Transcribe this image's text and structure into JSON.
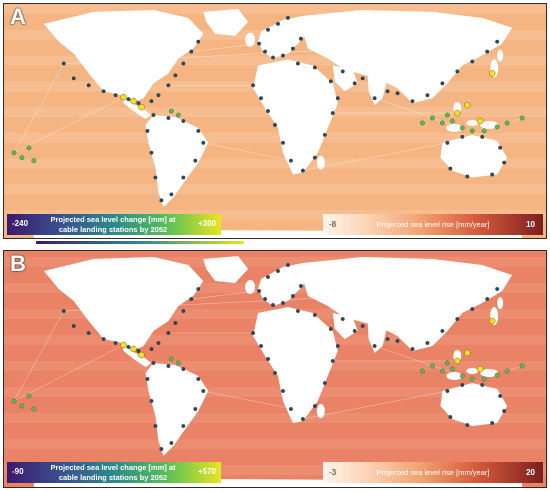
{
  "panels": [
    {
      "letter": "A",
      "legend_left": {
        "min": "-240",
        "max": "+300",
        "title": "Projected sea level change [mm] at cable landing stations by 2052"
      },
      "legend_right": {
        "min": "-8",
        "max": "10",
        "title": "Projected sea level rise [mm/year]"
      },
      "ocean_color": "#f4b583",
      "ocean_color_light": "#f8cfa8"
    },
    {
      "letter": "B",
      "legend_left": {
        "min": "-90",
        "max": "+570",
        "title": "Projected sea level change [mm] at cable landing stations by 2052"
      },
      "legend_right": {
        "min": "-3",
        "max": "20",
        "title": "Projected sea level rise [mm/year]"
      },
      "ocean_color": "#ea8266",
      "ocean_color_light": "#f1a488"
    }
  ],
  "colors": {
    "land": "#ffffff",
    "station_low": "#2c4a5e",
    "station_mid": "#5cb85c",
    "station_high": "#f2e024",
    "cable": "#ffffff"
  }
}
